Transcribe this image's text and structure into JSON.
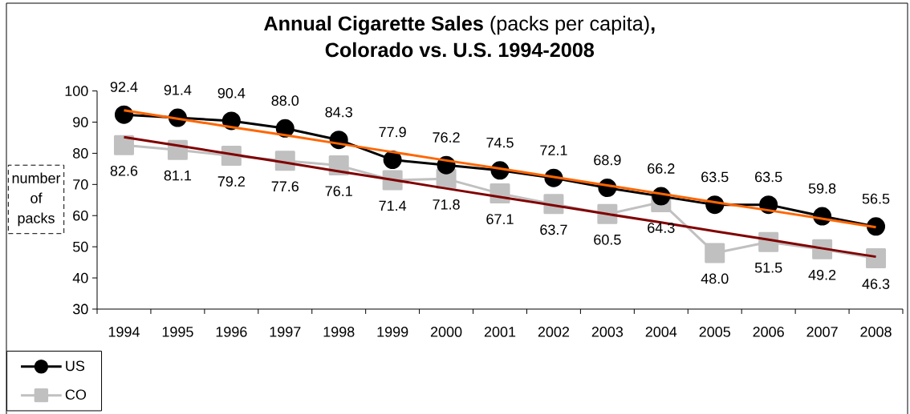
{
  "chart_data": {
    "type": "line",
    "title": "**Annual Cigarette Sales** (packs per capita)**,** **Colorado vs. U.S. 1994-2008**",
    "ylabel": "number of packs",
    "categories": [
      "1994",
      "1995",
      "1996",
      "1997",
      "1998",
      "1999",
      "2000",
      "2001",
      "2002",
      "2003",
      "2004",
      "2005",
      "2006",
      "2007",
      "2008"
    ],
    "ylim": [
      30,
      100
    ],
    "yticks": [
      30,
      40,
      50,
      60,
      70,
      80,
      90,
      100
    ],
    "legend": "bottom left",
    "series": [
      {
        "name": "US",
        "color": "#000000",
        "marker": "circle",
        "values": [
          92.4,
          91.4,
          90.4,
          88.0,
          84.3,
          77.9,
          76.2,
          74.5,
          72.1,
          68.9,
          66.2,
          63.5,
          63.5,
          59.8,
          56.5
        ],
        "value_labels": [
          "92.4",
          "91.4",
          "90.4",
          "88.0",
          "84.3",
          "77.9",
          "76.2",
          "74.5",
          "72.1",
          "68.9",
          "66.2",
          "63.5",
          "63.5",
          "59.8",
          "56.5"
        ]
      },
      {
        "name": "CO",
        "color": "#c0c0c0",
        "marker": "square",
        "values": [
          82.6,
          81.1,
          79.2,
          77.6,
          76.1,
          71.4,
          71.8,
          67.1,
          63.7,
          60.5,
          64.3,
          48.0,
          51.5,
          49.2,
          46.3
        ],
        "value_labels": [
          "82.6",
          "81.1",
          "79.2",
          "77.6",
          "76.1",
          "71.4",
          "71.8",
          "67.1",
          "63.7",
          "60.5",
          "64.3",
          "48.0",
          "51.5",
          "49.2",
          "46.3"
        ]
      },
      {
        "type": "line",
        "color": "#ff6600",
        "marker": "none",
        "values": [
          93.8,
          91.1,
          88.4,
          85.8,
          83.1,
          80.4,
          77.7,
          75.1,
          72.4,
          69.7,
          67.0,
          64.3,
          61.7,
          59.0,
          56.3
        ]
      },
      {
        "type": "line",
        "color": "#800000",
        "marker": "none",
        "values": [
          85.2,
          82.5,
          79.7,
          77.0,
          74.2,
          71.5,
          68.7,
          66.0,
          63.3,
          60.5,
          57.8,
          55.0,
          52.3,
          49.5,
          46.8
        ]
      }
    ]
  }
}
